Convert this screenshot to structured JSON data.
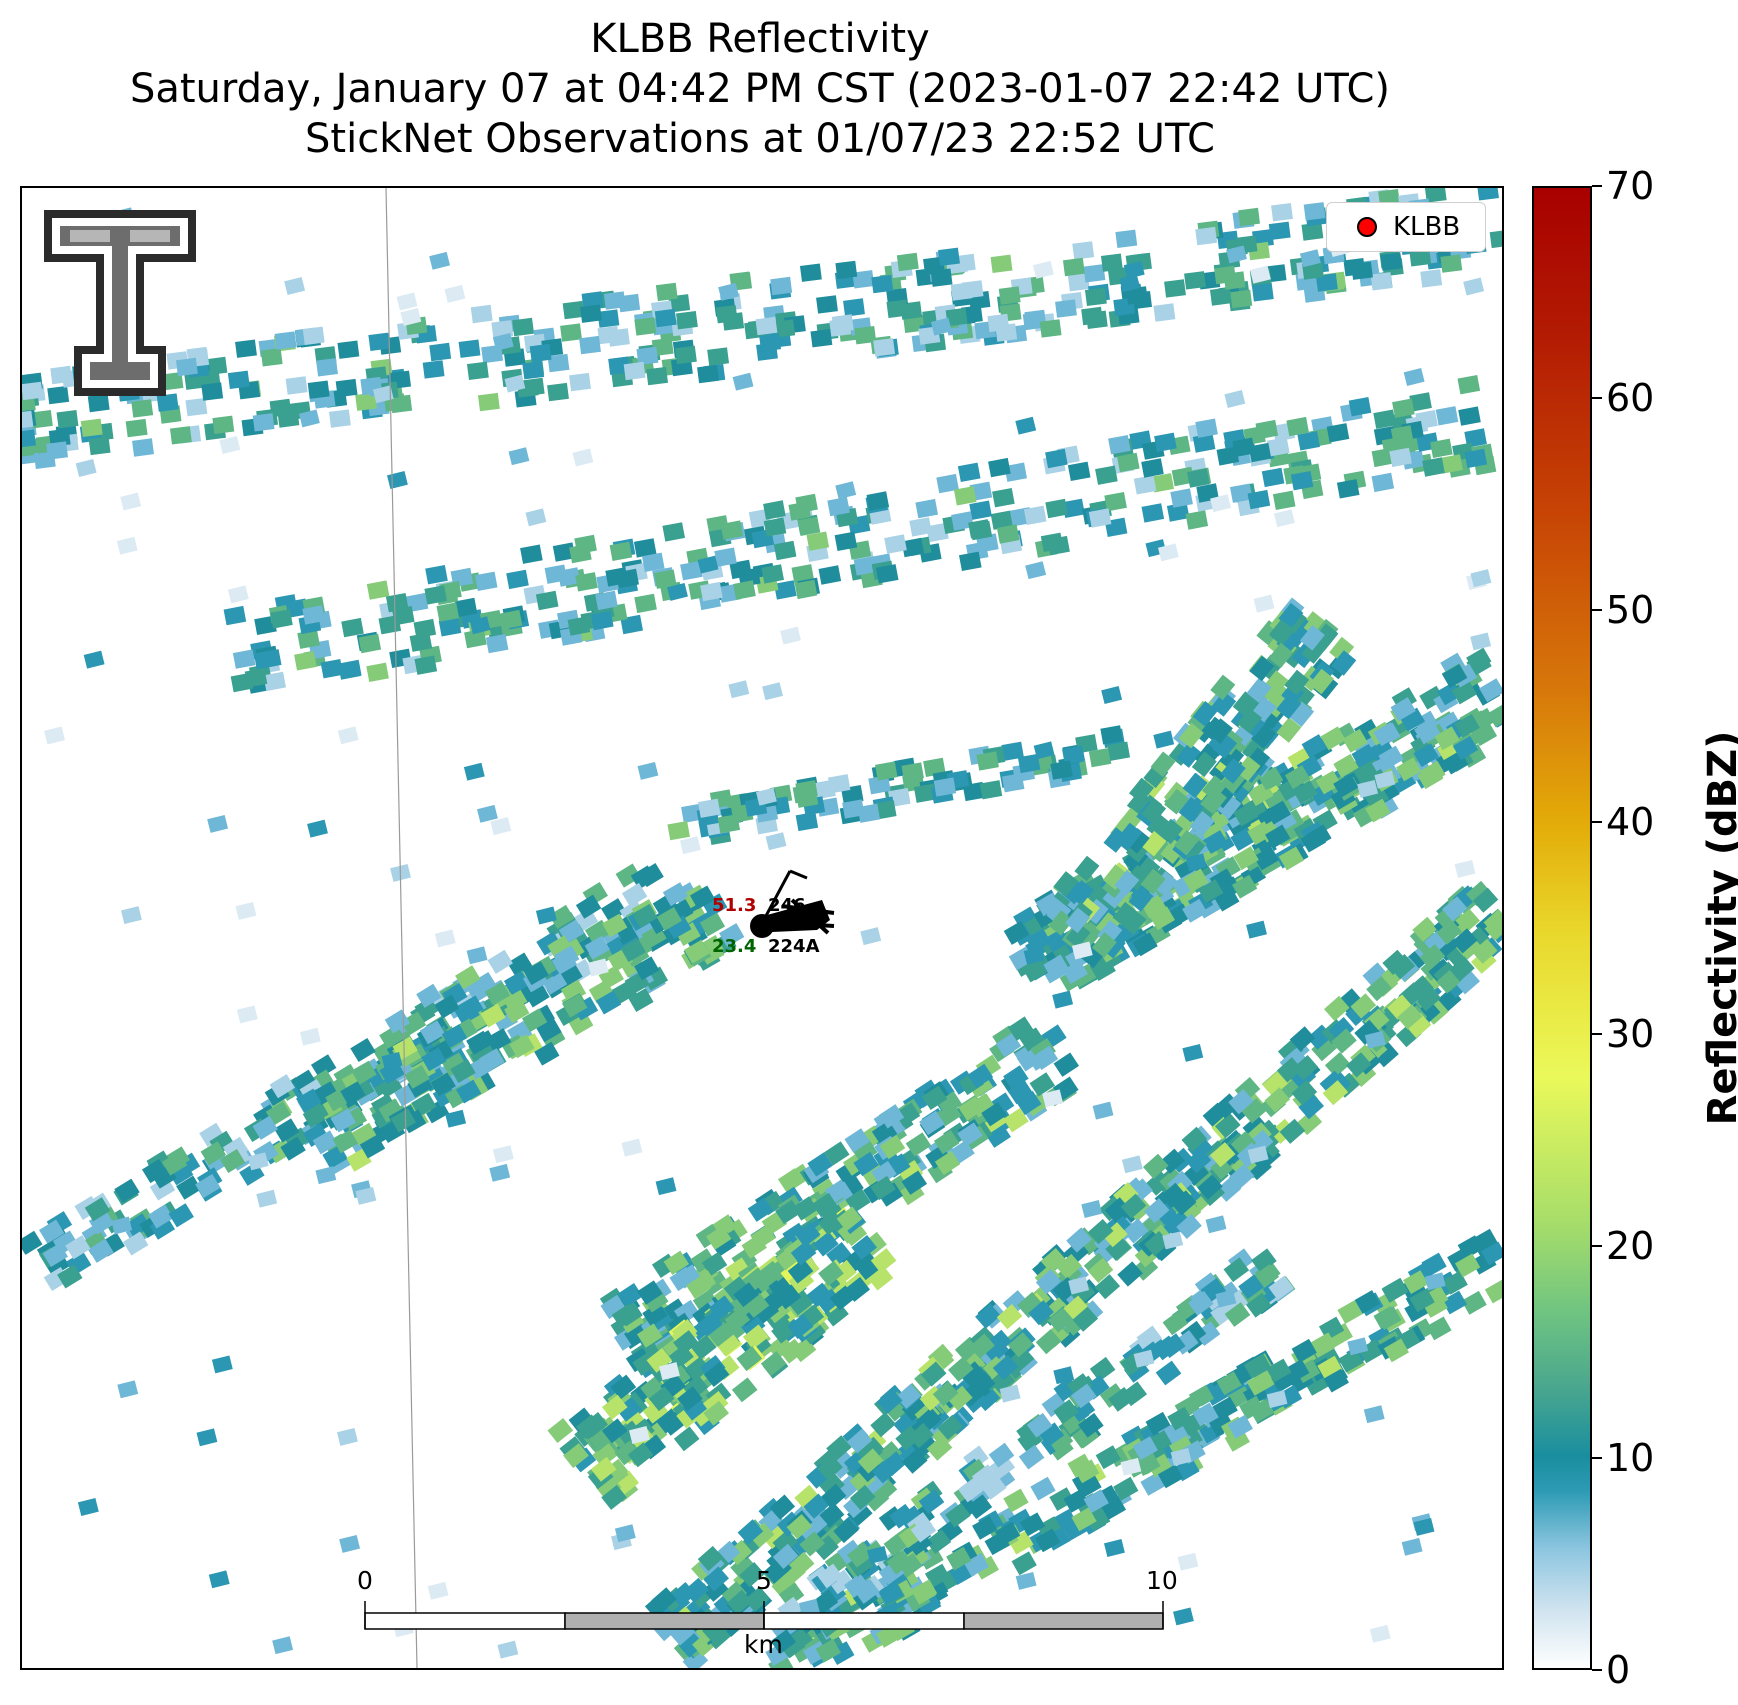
{
  "title": {
    "line1": "KLBB Reflectivity",
    "line2": "Saturday, January 07 at 04:42 PM CST (2023-01-07 22:42 UTC)",
    "line3": "StickNet Observations at 01/07/23 22:52 UTC"
  },
  "legend": {
    "label": "KLBB",
    "marker_color": "#ff0000"
  },
  "station": {
    "temperature": "51.3",
    "dewpoint": "23.4",
    "station_id_top": "246",
    "station_id_bottom": "224A",
    "temperature_color": "#b00000",
    "dewpoint_color": "#006400"
  },
  "scalebar": {
    "ticks": [
      "0",
      "5",
      "10"
    ],
    "unit": "km"
  },
  "colorbar": {
    "title": "Reflectivity (dBZ)",
    "ticks": [
      "0",
      "10",
      "20",
      "30",
      "40",
      "50",
      "60",
      "70"
    ],
    "min": 0,
    "max": 70
  },
  "logo": {
    "icon": "texas-tech-double-t-logo"
  }
}
